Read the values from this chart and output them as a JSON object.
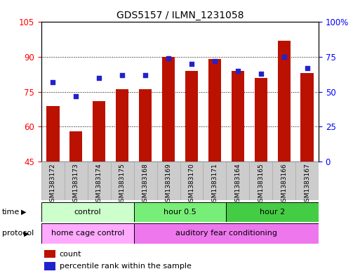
{
  "title": "GDS5157 / ILMN_1231058",
  "samples": [
    "GSM1383172",
    "GSM1383173",
    "GSM1383174",
    "GSM1383175",
    "GSM1383168",
    "GSM1383169",
    "GSM1383170",
    "GSM1383171",
    "GSM1383164",
    "GSM1383165",
    "GSM1383166",
    "GSM1383167"
  ],
  "bar_values": [
    69,
    58,
    71,
    76,
    76,
    90,
    84,
    89,
    84,
    81,
    97,
    83
  ],
  "dot_values": [
    57,
    47,
    60,
    62,
    62,
    74,
    70,
    72,
    65,
    63,
    75,
    67
  ],
  "ylim_left": [
    45,
    105
  ],
  "ylim_right": [
    0,
    100
  ],
  "yticks_left": [
    45,
    60,
    75,
    90,
    105
  ],
  "yticks_right": [
    0,
    25,
    50,
    75,
    100
  ],
  "ytick_labels_right": [
    "0",
    "25",
    "50",
    "75",
    "100%"
  ],
  "bar_color": "#bb1100",
  "dot_color": "#2222cc",
  "time_groups": [
    {
      "label": "control",
      "start": 0,
      "end": 4,
      "color": "#ccffcc"
    },
    {
      "label": "hour 0.5",
      "start": 4,
      "end": 8,
      "color": "#77ee77"
    },
    {
      "label": "hour 2",
      "start": 8,
      "end": 12,
      "color": "#44cc44"
    }
  ],
  "protocol_groups": [
    {
      "label": "home cage control",
      "start": 0,
      "end": 4,
      "color": "#ffaaff"
    },
    {
      "label": "auditory fear conditioning",
      "start": 4,
      "end": 12,
      "color": "#ee77ee"
    }
  ],
  "time_label": "time",
  "protocol_label": "protocol",
  "legend_bar_label": "count",
  "legend_dot_label": "percentile rank within the sample",
  "bg_color": "#ffffff",
  "xtick_bg": "#cccccc",
  "xtick_edge": "#aaaaaa"
}
